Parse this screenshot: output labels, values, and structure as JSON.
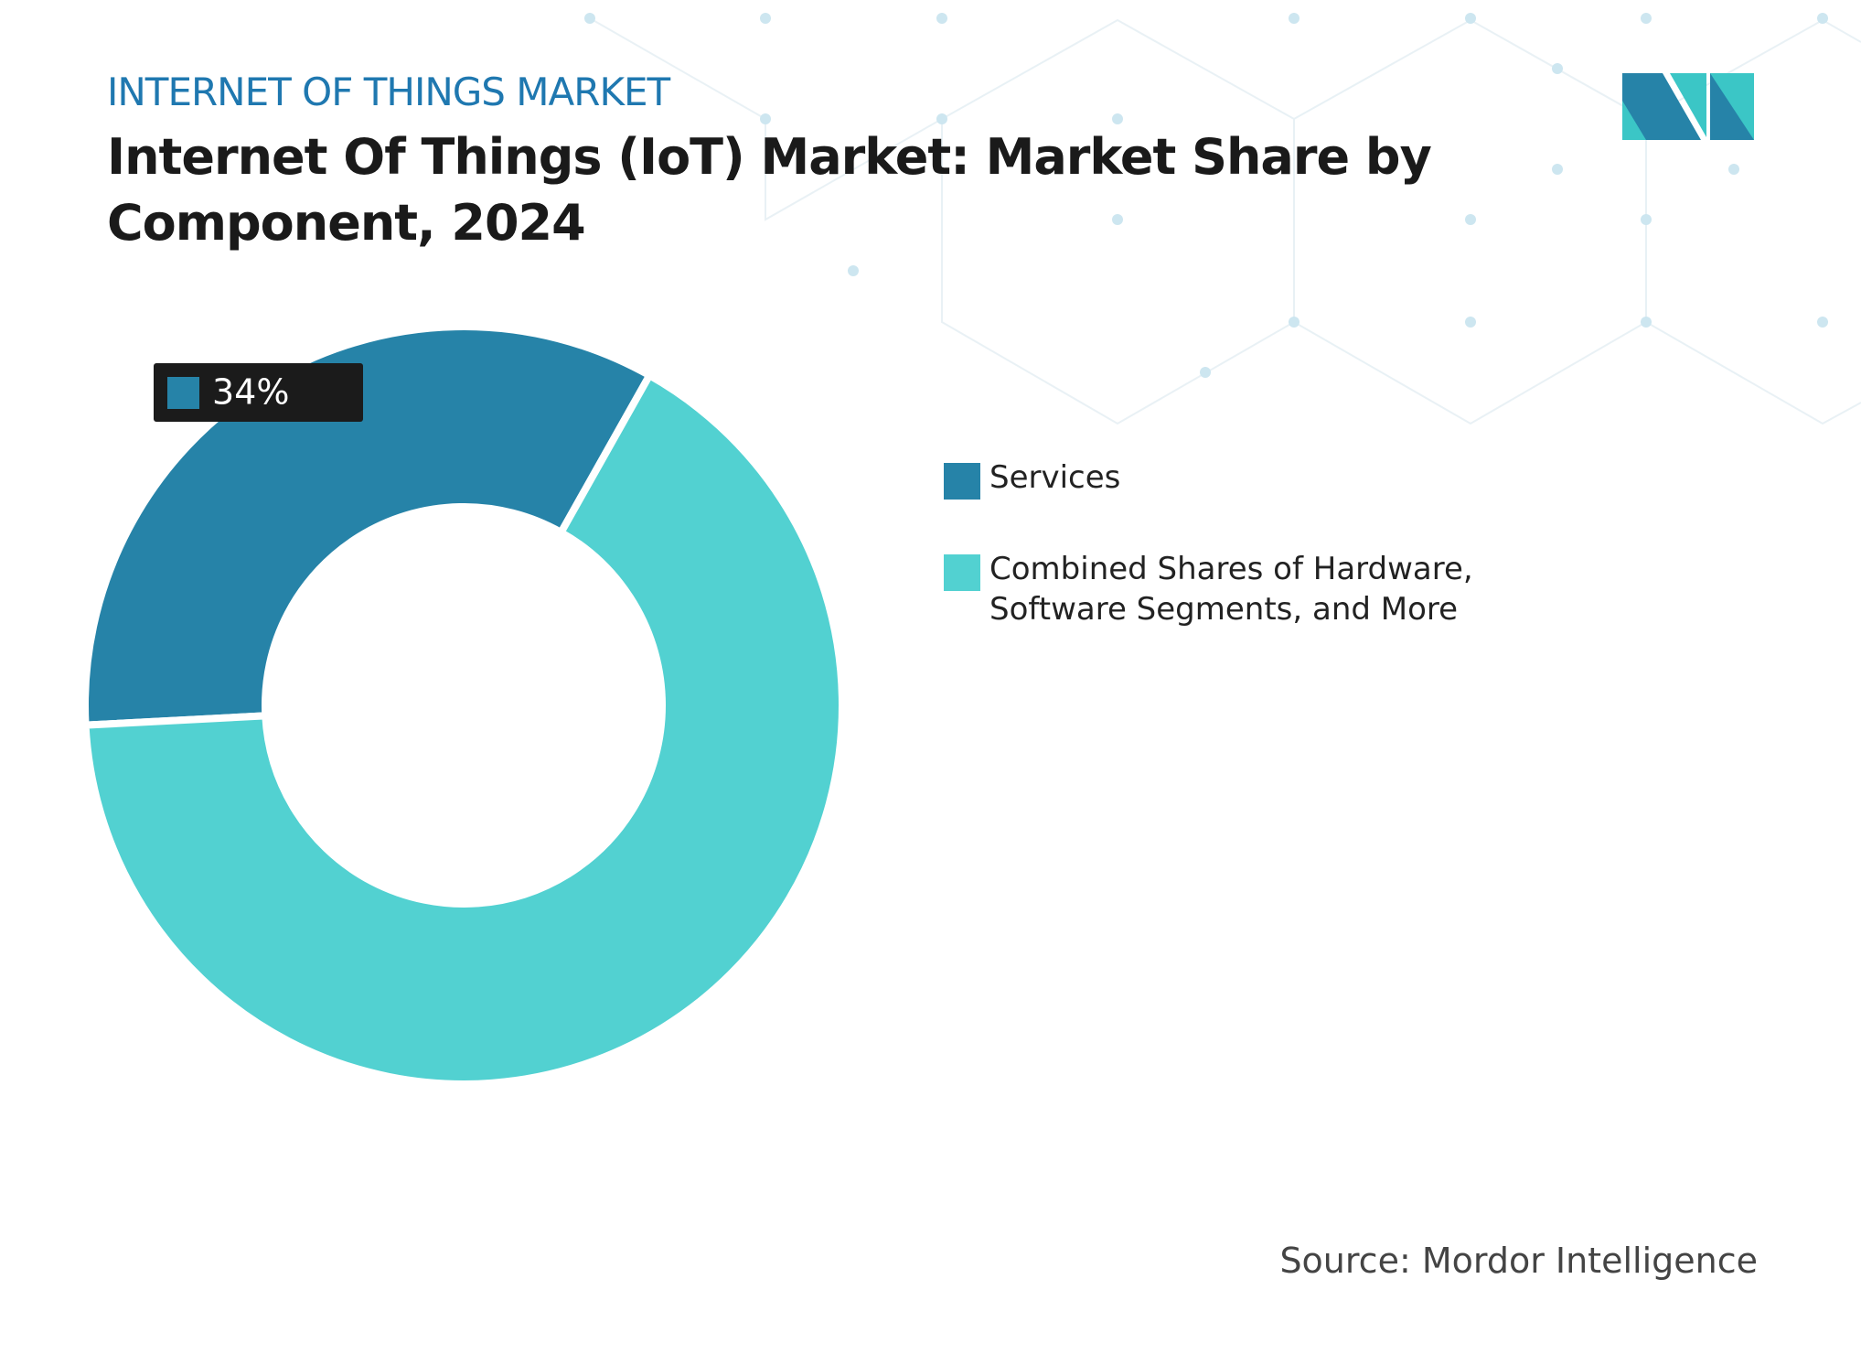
{
  "chart_data": {
    "type": "donut",
    "subtitle": "INTERNET OF THINGS MARKET",
    "title": "Internet Of Things (IoT) Market: Market Share by Component, 2024",
    "categories": [
      "Services",
      "Combined Shares of Hardware, Software Segments, and More"
    ],
    "values": [
      34,
      66
    ],
    "value_labels": [
      "34%",
      null
    ],
    "colors": [
      "#2683a8",
      "#52d1d1"
    ],
    "source": "Source: Mordor Intelligence"
  }
}
